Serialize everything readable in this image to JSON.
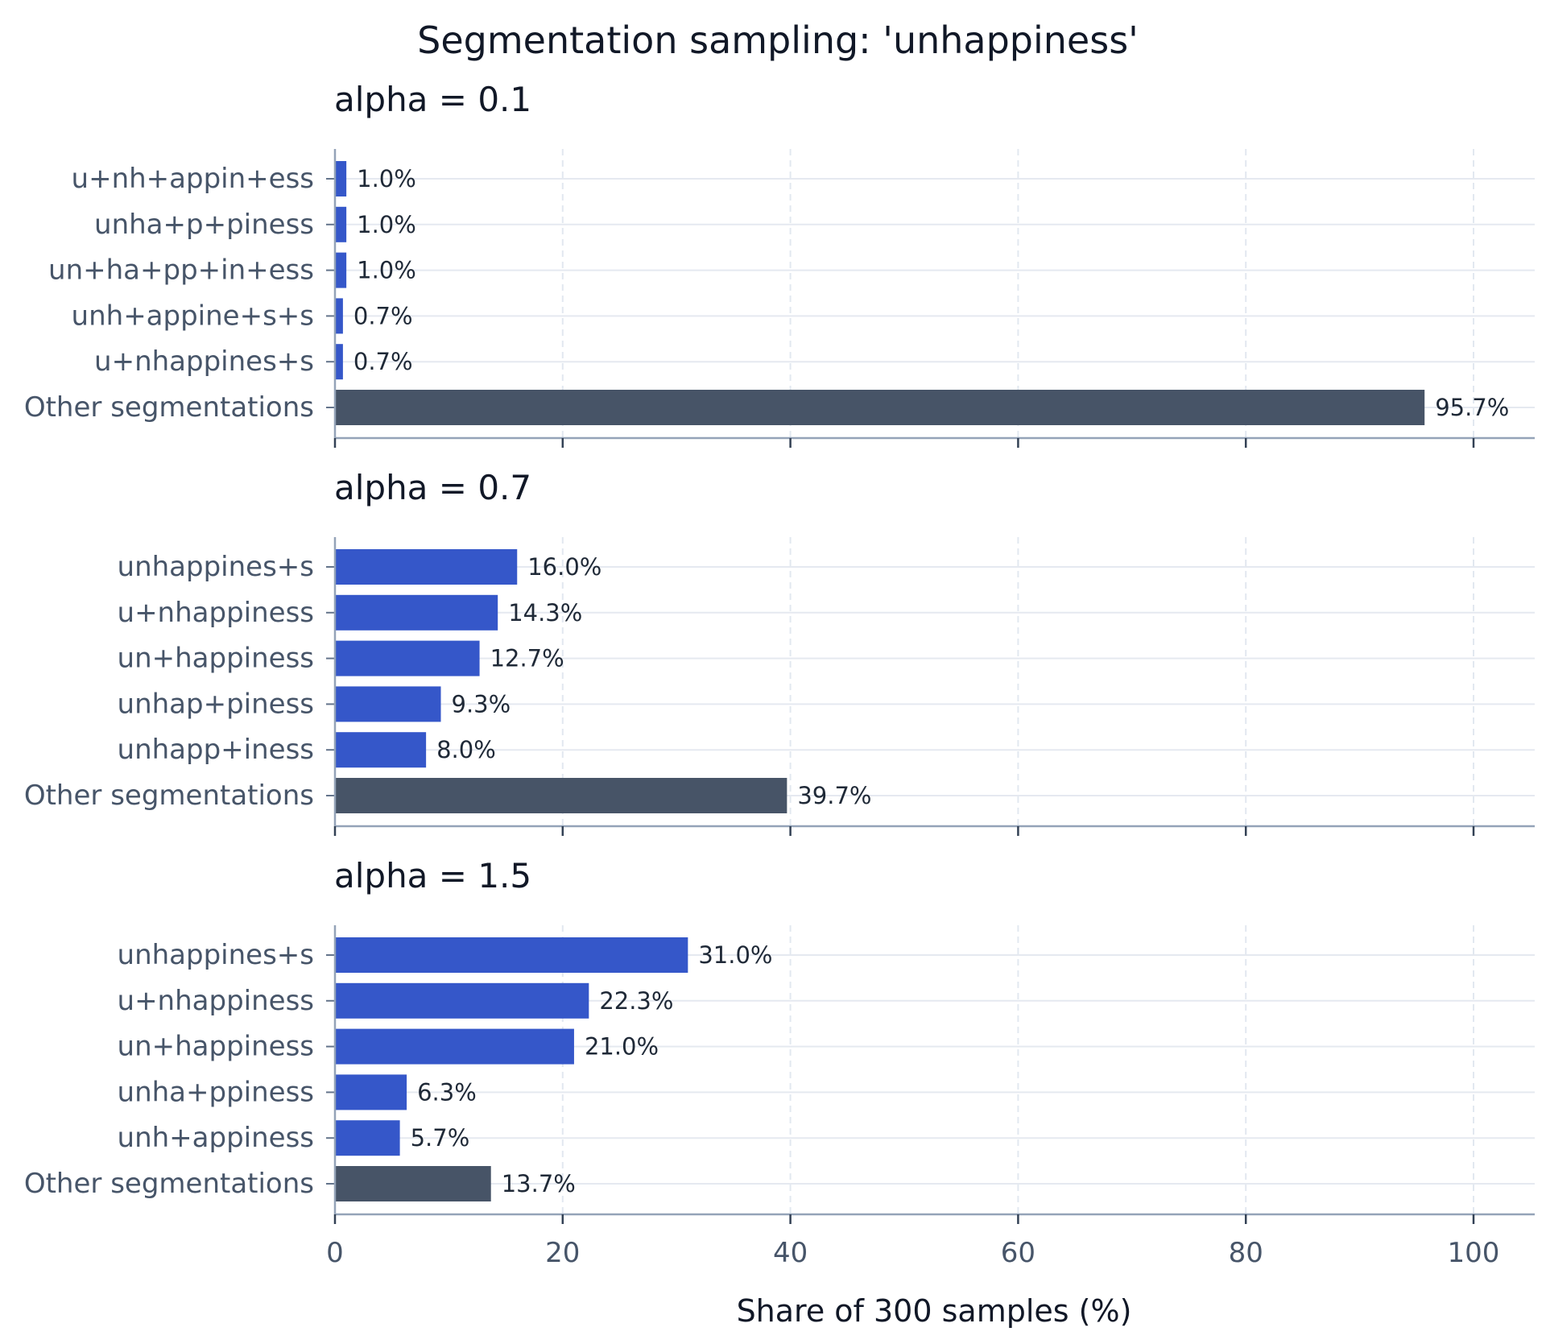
{
  "chart_data": {
    "type": "bar",
    "orientation": "horizontal",
    "title": "Segmentation sampling: 'unhappiness'",
    "xlabel": "Share of 300 samples (%)",
    "xlim": [
      0,
      105
    ],
    "xticks": [
      0,
      20,
      40,
      60,
      80,
      100
    ],
    "grid": true,
    "colors": {
      "primary": "#3557C9",
      "other": "#475467"
    },
    "panels": [
      {
        "title": "alpha = 0.1",
        "categories": [
          "u+nh+appin+ess",
          "unha+p+piness",
          "un+ha+pp+in+ess",
          "unh+appine+s+s",
          "u+nhappines+s",
          "Other segmentations"
        ],
        "values": [
          1.0,
          1.0,
          1.0,
          0.7,
          0.7,
          95.7
        ],
        "labels": [
          "1.0%",
          "1.0%",
          "1.0%",
          "0.7%",
          "0.7%",
          "95.7%"
        ]
      },
      {
        "title": "alpha = 0.7",
        "categories": [
          "unhappines+s",
          "u+nhappiness",
          "un+happiness",
          "unhap+piness",
          "unhapp+iness",
          "Other segmentations"
        ],
        "values": [
          16.0,
          14.3,
          12.7,
          9.3,
          8.0,
          39.7
        ],
        "labels": [
          "16.0%",
          "14.3%",
          "12.7%",
          "9.3%",
          "8.0%",
          "39.7%"
        ]
      },
      {
        "title": "alpha = 1.5",
        "categories": [
          "unhappines+s",
          "u+nhappiness",
          "un+happiness",
          "unha+ppiness",
          "unh+appiness",
          "Other segmentations"
        ],
        "values": [
          31.0,
          22.3,
          21.0,
          6.3,
          5.7,
          13.7
        ],
        "labels": [
          "31.0%",
          "22.3%",
          "21.0%",
          "6.3%",
          "5.7%",
          "13.7%"
        ]
      }
    ]
  }
}
